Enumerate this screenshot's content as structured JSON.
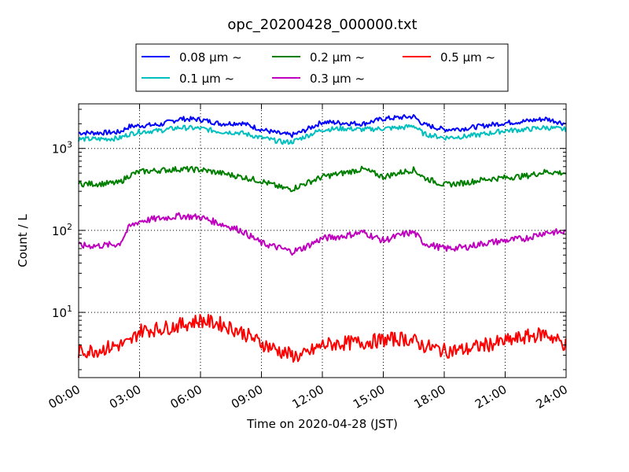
{
  "chart_data": {
    "type": "line",
    "title": "opc_20200428_000000.txt",
    "xlabel": "Time on 2020-04-28 (JST)",
    "ylabel": "Count / L",
    "yscale": "log",
    "xlim": [
      "00:00",
      "24:00"
    ],
    "ylim": [
      1.6,
      3500
    ],
    "grid": true,
    "legend_placement": "top-center",
    "x_ticks": [
      "00:00",
      "03:00",
      "06:00",
      "09:00",
      "12:00",
      "15:00",
      "18:00",
      "21:00",
      "24:00"
    ],
    "y_ticks": [
      {
        "value": 10,
        "base": "10",
        "exp": "1"
      },
      {
        "value": 100,
        "base": "10",
        "exp": "2"
      },
      {
        "value": 1000,
        "base": "10",
        "exp": "3"
      }
    ],
    "x": [
      "00:00",
      "01:00",
      "02:00",
      "02:30",
      "03:00",
      "04:00",
      "05:00",
      "06:00",
      "07:00",
      "08:00",
      "09:00",
      "10:00",
      "10:30",
      "11:00",
      "12:00",
      "13:00",
      "14:00",
      "15:00",
      "16:00",
      "16:30",
      "17:00",
      "18:00",
      "19:00",
      "20:00",
      "21:00",
      "22:00",
      "23:00",
      "24:00"
    ],
    "series": [
      {
        "name": "0.08 µm ~",
        "color": "#0000ff",
        "values": [
          1550,
          1550,
          1580,
          1850,
          1900,
          1950,
          2300,
          2250,
          2000,
          2050,
          1700,
          1500,
          1450,
          1600,
          2100,
          2050,
          2000,
          2300,
          2400,
          2450,
          1950,
          1700,
          1750,
          1900,
          2050,
          2150,
          2300,
          2000
        ]
      },
      {
        "name": "0.1 µm ~",
        "color": "#00bfbf",
        "values": [
          1300,
          1300,
          1330,
          1500,
          1600,
          1650,
          1800,
          1750,
          1600,
          1550,
          1350,
          1200,
          1200,
          1350,
          1700,
          1750,
          1700,
          1750,
          1800,
          1900,
          1500,
          1350,
          1400,
          1500,
          1650,
          1700,
          1800,
          1700
        ]
      },
      {
        "name": "0.2 µm ~",
        "color": "#007f00",
        "values": [
          370,
          370,
          380,
          470,
          520,
          540,
          560,
          550,
          500,
          450,
          400,
          330,
          320,
          360,
          450,
          500,
          560,
          450,
          520,
          550,
          440,
          360,
          380,
          420,
          440,
          460,
          520,
          500
        ]
      },
      {
        "name": "0.3 µm ~",
        "color": "#bf00bf",
        "values": [
          65,
          65,
          68,
          110,
          130,
          140,
          150,
          145,
          120,
          100,
          70,
          60,
          55,
          60,
          80,
          85,
          95,
          75,
          90,
          95,
          70,
          60,
          62,
          70,
          75,
          80,
          95,
          95
        ]
      },
      {
        "name": "0.5 µm ~",
        "color": "#ff0000",
        "values": [
          3.3,
          3.5,
          4.0,
          4.2,
          6.0,
          6.3,
          7.0,
          8.0,
          7.2,
          5.8,
          4.2,
          3.3,
          3.0,
          2.9,
          4.0,
          4.2,
          4.3,
          4.6,
          4.8,
          4.5,
          3.9,
          3.4,
          3.5,
          4.0,
          4.4,
          5.0,
          5.5,
          4.0
        ]
      }
    ]
  }
}
